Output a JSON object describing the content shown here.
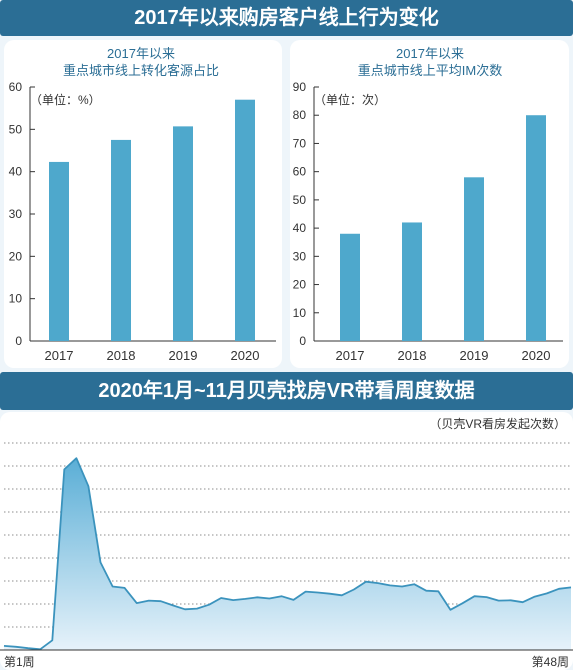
{
  "header": {
    "main_title": "2017年以来购房客户线上行为变化"
  },
  "section2": {
    "title": "2020年1月~11月贝壳找房VR带看周度数据"
  },
  "chart_data": [
    {
      "type": "bar",
      "title_line1": "2017年以来",
      "title_line2": "重点城市线上转化客源占比",
      "unit_label": "（单位：%）",
      "categories": [
        "2017",
        "2018",
        "2019",
        "2020"
      ],
      "values": [
        42.3,
        47.5,
        50.7,
        57.0
      ],
      "ylim": [
        0,
        60
      ],
      "yticks": [
        0,
        10,
        20,
        30,
        40,
        50,
        60
      ],
      "bar_color": "#4ea8cc"
    },
    {
      "type": "bar",
      "title_line1": "2017年以来",
      "title_line2": "重点城市线上平均IM次数",
      "unit_label": "（单位：次）",
      "categories": [
        "2017",
        "2018",
        "2019",
        "2020"
      ],
      "values": [
        38,
        42,
        58,
        80
      ],
      "ylim": [
        0,
        90
      ],
      "yticks": [
        0,
        10,
        20,
        30,
        40,
        50,
        60,
        70,
        80,
        90
      ],
      "bar_color": "#4ea8cc"
    },
    {
      "type": "area",
      "legend_label": "（贝壳VR看房发起次数）",
      "x_start_label": "第1周",
      "x_end_label": "第48周",
      "x": [
        1,
        2,
        3,
        4,
        5,
        6,
        7,
        8,
        9,
        10,
        11,
        12,
        13,
        14,
        15,
        16,
        17,
        18,
        19,
        20,
        21,
        22,
        23,
        24,
        25,
        26,
        27,
        28,
        29,
        30,
        31,
        32,
        33,
        34,
        35,
        36,
        37,
        38,
        39,
        40,
        41,
        42,
        43,
        44,
        45,
        46,
        47,
        48
      ],
      "values": [
        1.8,
        1.4,
        0.8,
        0.3,
        4.2,
        78.5,
        83.4,
        71.2,
        38.1,
        27.6,
        27.0,
        20.4,
        21.5,
        21.2,
        19.4,
        17.7,
        18.0,
        19.7,
        22.6,
        21.7,
        22.2,
        22.9,
        22.4,
        23.4,
        21.8,
        25.4,
        25.0,
        24.5,
        23.8,
        26.3,
        29.7,
        29.1,
        28.1,
        27.6,
        28.6,
        25.8,
        25.5,
        17.5,
        20.3,
        23.4,
        23.0,
        21.5,
        21.6,
        20.8,
        23.2,
        24.6,
        26.6,
        27.2
      ],
      "ylim": [
        0,
        100
      ],
      "grid": true,
      "line_color": "#3b93bd",
      "fill_top_color": "#5aaed6",
      "fill_bottom_color": "#e6f2fa"
    }
  ]
}
